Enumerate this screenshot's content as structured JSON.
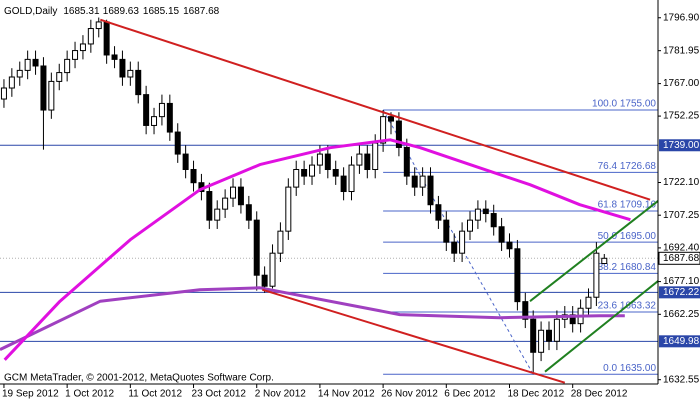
{
  "chart_data": {
    "type": "candlestick",
    "symbol": "GOLD,Daily",
    "footer": "GCM MetaTrader, © 2001-2012, MetaQuotes Software Corp.",
    "categories": [
      "19 Sep 2012",
      null,
      null,
      null,
      null,
      null,
      null,
      null,
      "1 Oct 2012",
      null,
      null,
      null,
      null,
      null,
      null,
      null,
      "11 Oct 2012",
      null,
      null,
      null,
      null,
      null,
      null,
      null,
      "23 Oct 2012",
      null,
      null,
      null,
      null,
      null,
      null,
      null,
      "2 Nov 2012",
      null,
      null,
      null,
      null,
      null,
      null,
      null,
      "14 Nov 2012",
      null,
      null,
      null,
      null,
      null,
      null,
      null,
      "26 Nov 2012",
      null,
      null,
      null,
      null,
      null,
      null,
      null,
      "6 Dec 2012",
      null,
      null,
      null,
      null,
      null,
      null,
      null,
      "18 Dec 2012",
      null,
      null,
      null,
      null,
      null,
      null,
      null,
      "28 Dec 2012",
      null,
      null,
      null,
      null
    ],
    "open": [
      1760,
      1765,
      1770,
      1773,
      1778,
      1775,
      1755,
      1768,
      1772,
      1778,
      1782,
      1785,
      1792,
      1795,
      1780,
      1778,
      1770,
      1773,
      1762,
      1748,
      1752,
      1758,
      1745,
      1735,
      1728,
      1722,
      1718,
      1705,
      1710,
      1715,
      1720,
      1712,
      1705,
      1680,
      1675,
      1690,
      1700,
      1720,
      1728,
      1725,
      1730,
      1735,
      1728,
      1725,
      1718,
      1730,
      1735,
      1728,
      1740,
      1752,
      1750,
      1738,
      1725,
      1720,
      1725,
      1712,
      1705,
      1695,
      1690,
      1700,
      1705,
      1710,
      1708,
      1702,
      1695,
      1692,
      1668,
      1660,
      1645,
      1655,
      1650,
      1660,
      1662,
      1658,
      1665,
      1670,
      1685.31
    ],
    "high": [
      1769,
      1774,
      1777,
      1782,
      1782,
      1779,
      1772,
      1776,
      1782,
      1786,
      1789,
      1796,
      1797,
      1796,
      1784,
      1782,
      1777,
      1777,
      1766,
      1756,
      1762,
      1762,
      1749,
      1739,
      1732,
      1726,
      1722,
      1714,
      1719,
      1724,
      1724,
      1716,
      1709,
      1684,
      1694,
      1704,
      1724,
      1732,
      1732,
      1734,
      1739,
      1739,
      1732,
      1729,
      1734,
      1739,
      1739,
      1744,
      1755,
      1754,
      1754,
      1742,
      1729,
      1729,
      1729,
      1716,
      1709,
      1699,
      1704,
      1709,
      1714,
      1714,
      1712,
      1706,
      1699,
      1696,
      1672,
      1664,
      1659,
      1659,
      1664,
      1666,
      1666,
      1669,
      1674,
      1695,
      1689.63
    ],
    "low": [
      1756,
      1761,
      1766,
      1769,
      1771,
      1737,
      1751,
      1764,
      1768,
      1774,
      1778,
      1781,
      1788,
      1776,
      1774,
      1766,
      1766,
      1758,
      1744,
      1744,
      1748,
      1741,
      1731,
      1724,
      1718,
      1714,
      1701,
      1701,
      1706,
      1711,
      1708,
      1701,
      1673,
      1672,
      1674,
      1686,
      1696,
      1716,
      1721,
      1721,
      1726,
      1724,
      1721,
      1714,
      1714,
      1726,
      1724,
      1724,
      1736,
      1744,
      1734,
      1721,
      1716,
      1716,
      1708,
      1701,
      1691,
      1686,
      1686,
      1696,
      1701,
      1704,
      1698,
      1691,
      1688,
      1664,
      1656,
      1635,
      1641,
      1646,
      1646,
      1656,
      1654,
      1654,
      1661,
      1666,
      1685.15
    ],
    "close": [
      1765,
      1770,
      1773,
      1778,
      1775,
      1755,
      1768,
      1772,
      1778,
      1782,
      1785,
      1792,
      1795,
      1780,
      1778,
      1770,
      1773,
      1762,
      1748,
      1752,
      1758,
      1745,
      1735,
      1728,
      1722,
      1718,
      1705,
      1710,
      1715,
      1720,
      1712,
      1705,
      1680,
      1675,
      1690,
      1700,
      1720,
      1728,
      1725,
      1730,
      1735,
      1728,
      1725,
      1718,
      1730,
      1735,
      1728,
      1740,
      1752,
      1750,
      1738,
      1725,
      1720,
      1725,
      1712,
      1705,
      1695,
      1690,
      1700,
      1705,
      1710,
      1708,
      1702,
      1695,
      1692,
      1668,
      1660,
      1645,
      1655,
      1650,
      1660,
      1662,
      1658,
      1665,
      1670,
      1690,
      1687.68
    ],
    "up_color": "#ffffff",
    "down_color": "#000000",
    "xlim": [
      -0.5,
      82.8
    ],
    "ylim": [
      1630.6,
      1803.6
    ],
    "yticks": [
      {
        "value": 1796.9,
        "label": "1796.90"
      },
      1781.95,
      {
        "value": 1767,
        "label": "1767.00"
      },
      1752.25,
      {
        "value": 1722.1,
        "label": "1722.10"
      },
      1707.25,
      {
        "value": 1692.4,
        "label": "1692.40"
      },
      {
        "value": 1677.1,
        "label": "1677.10"
      },
      1662.25,
      1632.55
    ],
    "overlays": [
      {
        "color": "#a040c0",
        "width": 3,
        "x": [
          -0.5,
          12.2,
          24.8,
          32.4,
          50.1,
          62.8,
          75.4,
          78.6
        ],
        "values": [
          1646.2,
          1668.2,
          1673.4,
          1674.3,
          1662.1,
          1660.7,
          1661.6,
          1661.6
        ]
      },
      {
        "color": "#e010e0",
        "width": 3,
        "x": [
          0.1,
          7.1,
          16,
          24.8,
          32.4,
          41.3,
          48.9,
          52.7,
          59,
          66.6,
          72.9,
          79.3
        ],
        "values": [
          1641.6,
          1668.2,
          1696.1,
          1718.8,
          1730.2,
          1737.9,
          1741.5,
          1737.9,
          1730.2,
          1721.1,
          1712,
          1705.2
        ]
      },
      {
        "color": "#d02020",
        "width": 2,
        "x": [
          12.2,
          81.8
        ],
        "values": [
          1796,
          1714.3
        ]
      },
      {
        "color": "#d02020",
        "width": 2,
        "x": [
          32.7,
          71
        ],
        "values": [
          1673.4,
          1631.2
        ]
      },
      {
        "color": "#208020",
        "width": 2,
        "x": [
          66.6,
          83
        ],
        "values": [
          1668.2,
          1714.3
        ]
      },
      {
        "color": "#208020",
        "width": 2,
        "x": [
          68.5,
          83
        ],
        "values": [
          1636.2,
          1677.9
        ]
      }
    ],
    "fibonacci": {
      "color": "#4a64c8",
      "x": [
        48,
        67
      ],
      "levels": [
        {
          "value": 1755,
          "label": "100.0 1755.00"
        },
        {
          "value": 1726.68,
          "label": "76.4 1726.68"
        },
        {
          "value": 1709.16,
          "label": "61.8 1709.16"
        },
        {
          "value": 1695,
          "label": "50.0 1695.00"
        },
        {
          "value": 1680.84,
          "label": "38.2 1680.84"
        },
        {
          "value": 1663.32,
          "label": "23.6 1663.32"
        },
        {
          "value": 1635,
          "label": "0.0 1635.00"
        }
      ]
    },
    "hlines": [
      {
        "value": 1739,
        "label": "1739.00",
        "color": "#2a46a8"
      },
      {
        "value": 1672.22,
        "label": "1672.22",
        "color": "#2a46a8"
      },
      {
        "value": 1649.98,
        "label": "1649.98",
        "color": "#2a46a8"
      }
    ],
    "price_line": {
      "value": 1687.68,
      "label": "1687.68",
      "color": "#b0b0b0"
    }
  }
}
